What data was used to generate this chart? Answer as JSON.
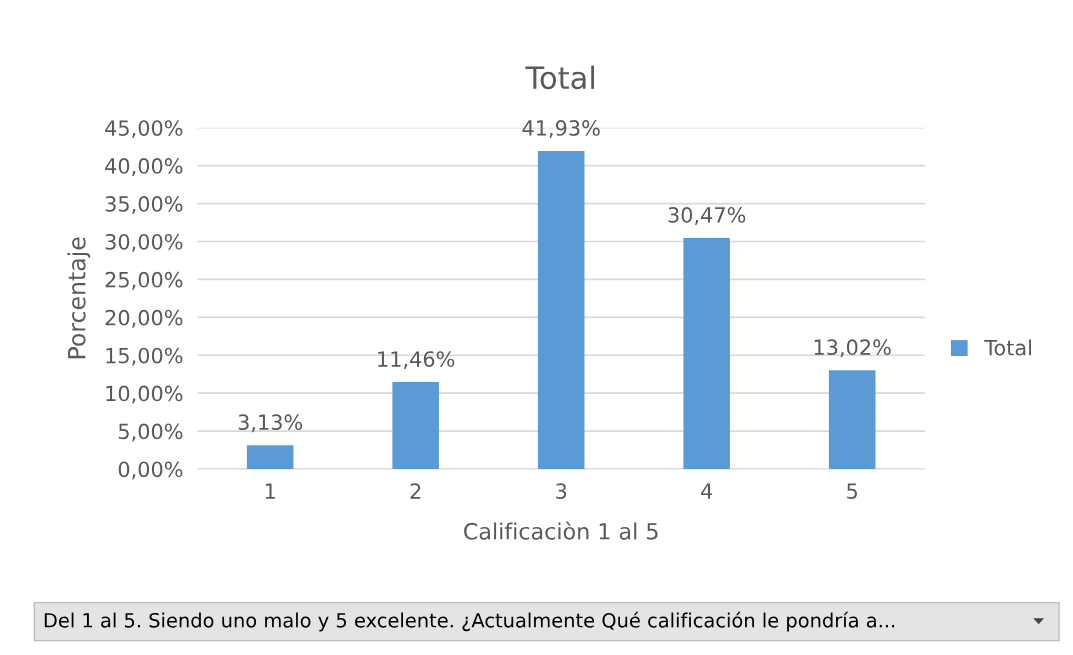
{
  "chart_data": {
    "type": "bar",
    "title": "Total",
    "xlabel": "Calificaciòn 1 al 5",
    "ylabel": "Porcentaje",
    "categories": [
      "1",
      "2",
      "3",
      "4",
      "5"
    ],
    "series": [
      {
        "name": "Total",
        "color": "#5b9bd5",
        "values": [
          3.13,
          11.46,
          41.93,
          30.47,
          13.02
        ],
        "value_labels": [
          "3,13%",
          "11,46%",
          "41,93%",
          "30,47%",
          "13,02%"
        ]
      }
    ],
    "ylim": [
      0,
      45
    ],
    "yticks": [
      {
        "value": 0,
        "label": "0,00%"
      },
      {
        "value": 5,
        "label": "5,00%"
      },
      {
        "value": 10,
        "label": "10,00%"
      },
      {
        "value": 15,
        "label": "15,00%"
      },
      {
        "value": 20,
        "label": "20,00%"
      },
      {
        "value": 25,
        "label": "25,00%"
      },
      {
        "value": 30,
        "label": "30,00%"
      },
      {
        "value": 35,
        "label": "35,00%"
      },
      {
        "value": 40,
        "label": "40,00%"
      },
      {
        "value": 45,
        "label": "45,00%"
      }
    ],
    "grid": "y",
    "legend": "right",
    "annotations": [
      "Del 1 al 5. Siendo uno malo y 5 excelente. ¿Actualmente Qué calificación le pondría a..."
    ]
  }
}
